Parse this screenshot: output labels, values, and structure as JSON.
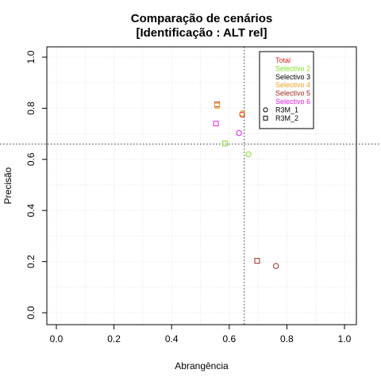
{
  "chart_data": {
    "type": "scatter",
    "title": "Comparação de cenários",
    "subtitle": "[Identificação : ALT rel]",
    "xlabel": "Abrangência",
    "ylabel": "Precisão",
    "xlim": [
      0,
      1
    ],
    "ylim": [
      0,
      1
    ],
    "x_ticks": [
      "0.0",
      "0.2",
      "0.4",
      "0.6",
      "0.8",
      "1.0"
    ],
    "y_ticks": [
      "0.0",
      "0.2",
      "0.4",
      "0.6",
      "0.8",
      "1.0"
    ],
    "grid": true,
    "legend_position": "top-right",
    "reference_lines": {
      "x": 0.652,
      "y": 0.66
    },
    "legend": {
      "colors": [
        {
          "name": "Total",
          "color": "#e0201f"
        },
        {
          "name": "Selectivo 2",
          "color": "#7fe020"
        },
        {
          "name": "Selectivo 3",
          "color": "#000000"
        },
        {
          "name": "Selectivo 4",
          "color": "#f0a020"
        },
        {
          "name": "Selectivo 5",
          "color": "#a0281e"
        },
        {
          "name": "Selectivo 6",
          "color": "#e020e0"
        }
      ],
      "shapes": [
        {
          "name": "R3M_1",
          "marker": "circle"
        },
        {
          "name": "R3M_2",
          "marker": "square"
        }
      ]
    },
    "points": [
      {
        "group": "Total",
        "method": "R3M_1",
        "x": 0.645,
        "y": 0.775
      },
      {
        "group": "Total",
        "method": "R3M_2",
        "x": 0.558,
        "y": 0.815
      },
      {
        "group": "Selectivo 2",
        "method": "R3M_1",
        "x": 0.667,
        "y": 0.62
      },
      {
        "group": "Selectivo 2",
        "method": "R3M_2",
        "x": 0.586,
        "y": 0.662
      },
      {
        "group": "Selectivo 4",
        "method": "R3M_1",
        "x": 0.645,
        "y": 0.78
      },
      {
        "group": "Selectivo 4",
        "method": "R3M_2",
        "x": 0.558,
        "y": 0.81
      },
      {
        "group": "Selectivo 5",
        "method": "R3M_1",
        "x": 0.762,
        "y": 0.183
      },
      {
        "group": "Selectivo 5",
        "method": "R3M_2",
        "x": 0.697,
        "y": 0.203
      },
      {
        "group": "Selectivo 6",
        "method": "R3M_1",
        "x": 0.634,
        "y": 0.703
      },
      {
        "group": "Selectivo 6",
        "method": "R3M_2",
        "x": 0.554,
        "y": 0.74
      }
    ]
  }
}
